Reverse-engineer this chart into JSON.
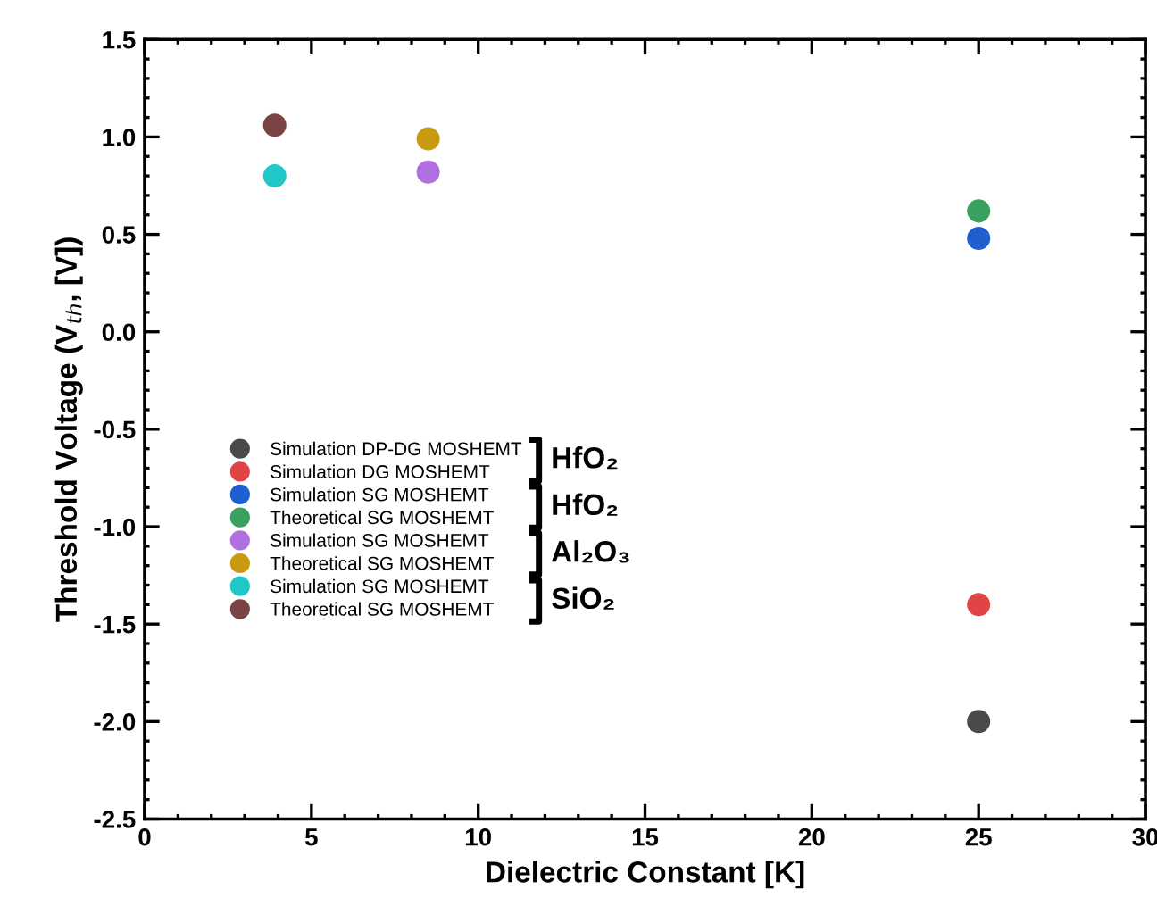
{
  "chart_data": {
    "type": "scatter",
    "xlabel": "Dielectric Constant [K]",
    "ylabel": "Threshold Voltage (V$_{th}$, [V])",
    "xlim": [
      0,
      30
    ],
    "xticks": [
      0,
      5,
      10,
      15,
      20,
      25,
      30
    ],
    "ylim": [
      -2.5,
      1.5
    ],
    "yticks": [
      {
        "value": -2.5,
        "label": "-2.5"
      },
      {
        "value": -2,
        "label": "-2.0"
      },
      {
        "value": -1.5,
        "label": "-1.5"
      },
      {
        "value": -1,
        "label": "-1.0"
      },
      {
        "value": -0.5,
        "label": "-0.5"
      },
      {
        "value": 0,
        "label": "0.0"
      },
      {
        "value": 0.5,
        "label": "0.5"
      },
      {
        "value": 1,
        "label": "1.0"
      },
      {
        "value": 1.5,
        "label": "1.5"
      }
    ],
    "marker": "circle",
    "grid": false,
    "legend": "left",
    "series": [
      {
        "name": "Simulation DP-DG MOSHEMT",
        "color": "#4a4a4a",
        "x": [
          25
        ],
        "values": [
          -2.0
        ]
      },
      {
        "name": "Simulation DG MOSHEMT",
        "color": "#e04444",
        "x": [
          25
        ],
        "values": [
          -1.4
        ]
      },
      {
        "name": "Simulation SG MOSHEMT",
        "color": "#1f5fd0",
        "x": [
          25
        ],
        "values": [
          0.48
        ]
      },
      {
        "name": "Theoretical SG MOSHEMT",
        "color": "#3aa060",
        "x": [
          25
        ],
        "values": [
          0.62
        ]
      },
      {
        "name": "Simulation SG MOSHEMT",
        "color": "#b070e0",
        "x": [
          8.5
        ],
        "values": [
          0.82
        ]
      },
      {
        "name": "Theoretical SG MOSHEMT",
        "color": "#c89a10",
        "x": [
          8.5
        ],
        "values": [
          0.99
        ]
      },
      {
        "name": "Simulation SG MOSHEMT",
        "color": "#20c8c8",
        "x": [
          3.9
        ],
        "values": [
          0.8
        ]
      },
      {
        "name": "Theoretical SG MOSHEMT",
        "color": "#7a4444",
        "x": [
          3.9
        ],
        "values": [
          1.06
        ]
      }
    ],
    "annotations": [
      "HfO₂",
      "HfO₂",
      "Al₂O₃",
      "SiO₂"
    ]
  }
}
